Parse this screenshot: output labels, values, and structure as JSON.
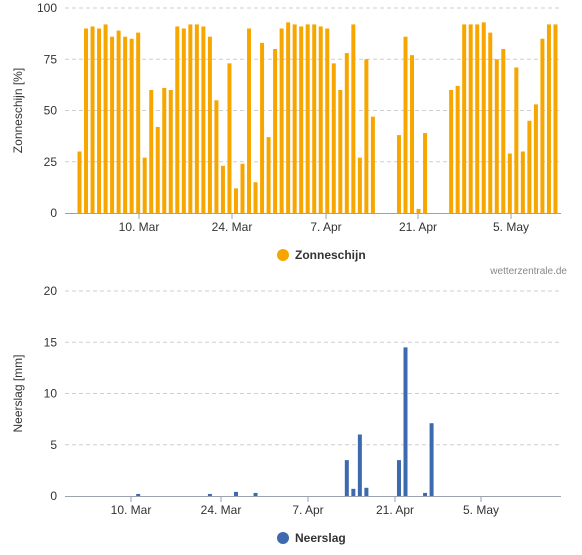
{
  "chart_data": [
    {
      "type": "bar",
      "ylabel": "Zonneschijn [%]",
      "ylim": [
        0,
        100
      ],
      "yticks": [
        0,
        25,
        50,
        75,
        100
      ],
      "x_tick_labels": [
        "10. Mar",
        "24. Mar",
        "7. Apr",
        "21. Apr",
        "5. May"
      ],
      "grid": true,
      "legend_position": "bottom-center",
      "credit": "wetterzentrale.de",
      "series": [
        {
          "name": "Zonneschijn",
          "color": "#F7A600",
          "values": [
            30,
            90,
            91,
            90,
            92,
            86,
            89,
            86,
            85,
            88,
            27,
            60,
            42,
            61,
            60,
            91,
            90,
            92,
            92,
            91,
            86,
            55,
            23,
            73,
            12,
            24,
            90,
            15,
            83,
            37,
            80,
            90,
            93,
            92,
            91,
            92,
            92,
            91,
            90,
            73,
            60,
            78,
            92,
            27,
            75,
            47,
            null,
            null,
            null,
            38,
            86,
            77,
            2,
            39,
            0,
            null,
            null,
            60,
            62,
            92,
            92,
            92,
            93,
            88,
            75,
            80,
            29,
            71,
            30,
            45,
            53,
            85,
            92,
            92
          ]
        }
      ]
    },
    {
      "type": "bar",
      "ylabel": "Neerslag [mm]",
      "ylim": [
        0,
        20
      ],
      "yticks": [
        0,
        5,
        10,
        15,
        20
      ],
      "x_tick_labels": [
        "10. Mar",
        "24. Mar",
        "7. Apr",
        "21. Apr",
        "5. May"
      ],
      "grid": true,
      "legend_position": "bottom-center",
      "series": [
        {
          "name": "Neerslag",
          "color": "#3D6AAE",
          "values": [
            0,
            0,
            0,
            0,
            0,
            0,
            0,
            0,
            0,
            0.2,
            0,
            0,
            0,
            0,
            0,
            0,
            0,
            0,
            0,
            0,
            0.2,
            0,
            0,
            0,
            0.4,
            0,
            0,
            0.3,
            0,
            0,
            0,
            0,
            0,
            0,
            0,
            0,
            0,
            0,
            0,
            0,
            0,
            3.5,
            0.7,
            6.0,
            0.8,
            0,
            0,
            0,
            0,
            3.5,
            14.5,
            0,
            0,
            0.3,
            7.1,
            0,
            0,
            0,
            0,
            0,
            0,
            0,
            0,
            0,
            0,
            0,
            0,
            0,
            0,
            0,
            0,
            0,
            0,
            0
          ]
        }
      ]
    }
  ]
}
